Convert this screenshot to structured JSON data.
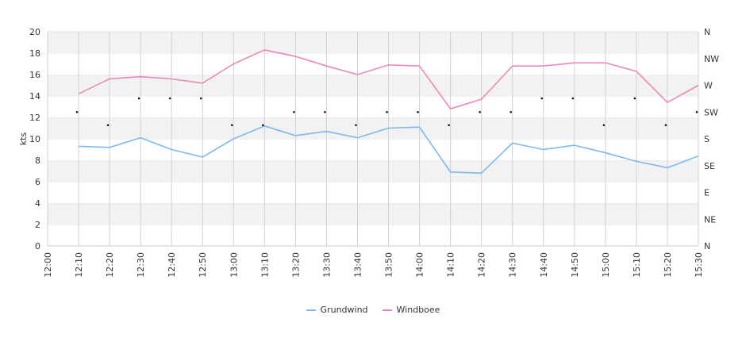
{
  "chart_data": {
    "type": "line",
    "ylabel": "kts",
    "ylim": [
      0,
      20
    ],
    "yticks": [
      0,
      2,
      4,
      6,
      8,
      10,
      12,
      14,
      16,
      18,
      20
    ],
    "x_tick_labels": [
      "12:00",
      "12:10",
      "12:20",
      "12:30",
      "12:40",
      "12:50",
      "13:00",
      "13:10",
      "13:20",
      "13:30",
      "13:40",
      "13:50",
      "14:00",
      "14:10",
      "14:20",
      "14:30",
      "14:40",
      "14:50",
      "15:00",
      "15:10",
      "15:20",
      "15:30"
    ],
    "x": [
      "12:10",
      "12:20",
      "12:30",
      "12:40",
      "12:50",
      "13:00",
      "13:10",
      "13:20",
      "13:30",
      "13:40",
      "13:50",
      "14:00",
      "14:10",
      "14:20",
      "14:30",
      "14:40",
      "14:50",
      "15:00",
      "15:10",
      "15:20",
      "15:30"
    ],
    "series": [
      {
        "name": "Grundwind",
        "color": "#7db8f0",
        "values": [
          9.3,
          9.2,
          10.1,
          9.0,
          8.3,
          10.0,
          11.2,
          10.3,
          10.7,
          10.1,
          11.0,
          11.1,
          6.9,
          6.8,
          9.6,
          9.0,
          9.4,
          8.7,
          7.9,
          7.3,
          8.4
        ]
      },
      {
        "name": "Windboee",
        "color": "#ee88b8",
        "values": [
          14.2,
          15.6,
          15.8,
          15.6,
          15.2,
          17.0,
          18.3,
          17.7,
          16.8,
          16.0,
          16.9,
          16.8,
          12.8,
          13.7,
          16.8,
          16.8,
          17.1,
          17.1,
          16.3,
          13.4,
          15.0
        ]
      }
    ],
    "direction_axis": {
      "labels": [
        "N",
        "NE",
        "E",
        "SE",
        "S",
        "SW",
        "W",
        "NW",
        "N"
      ],
      "degrees": [
        0,
        45,
        90,
        135,
        180,
        225,
        270,
        315,
        360
      ]
    },
    "direction": {
      "x": [
        "12:10",
        "12:20",
        "12:30",
        "12:40",
        "12:50",
        "13:00",
        "13:10",
        "13:20",
        "13:30",
        "13:40",
        "13:50",
        "14:00",
        "14:10",
        "14:20",
        "14:30",
        "14:40",
        "14:50",
        "15:00",
        "15:10",
        "15:20",
        "15:30"
      ],
      "degrees": [
        225,
        203,
        248,
        248,
        248,
        203,
        203,
        225,
        225,
        203,
        225,
        225,
        203,
        225,
        225,
        248,
        248,
        203,
        248,
        203,
        225
      ]
    },
    "grid": true,
    "legend": "bottom"
  }
}
